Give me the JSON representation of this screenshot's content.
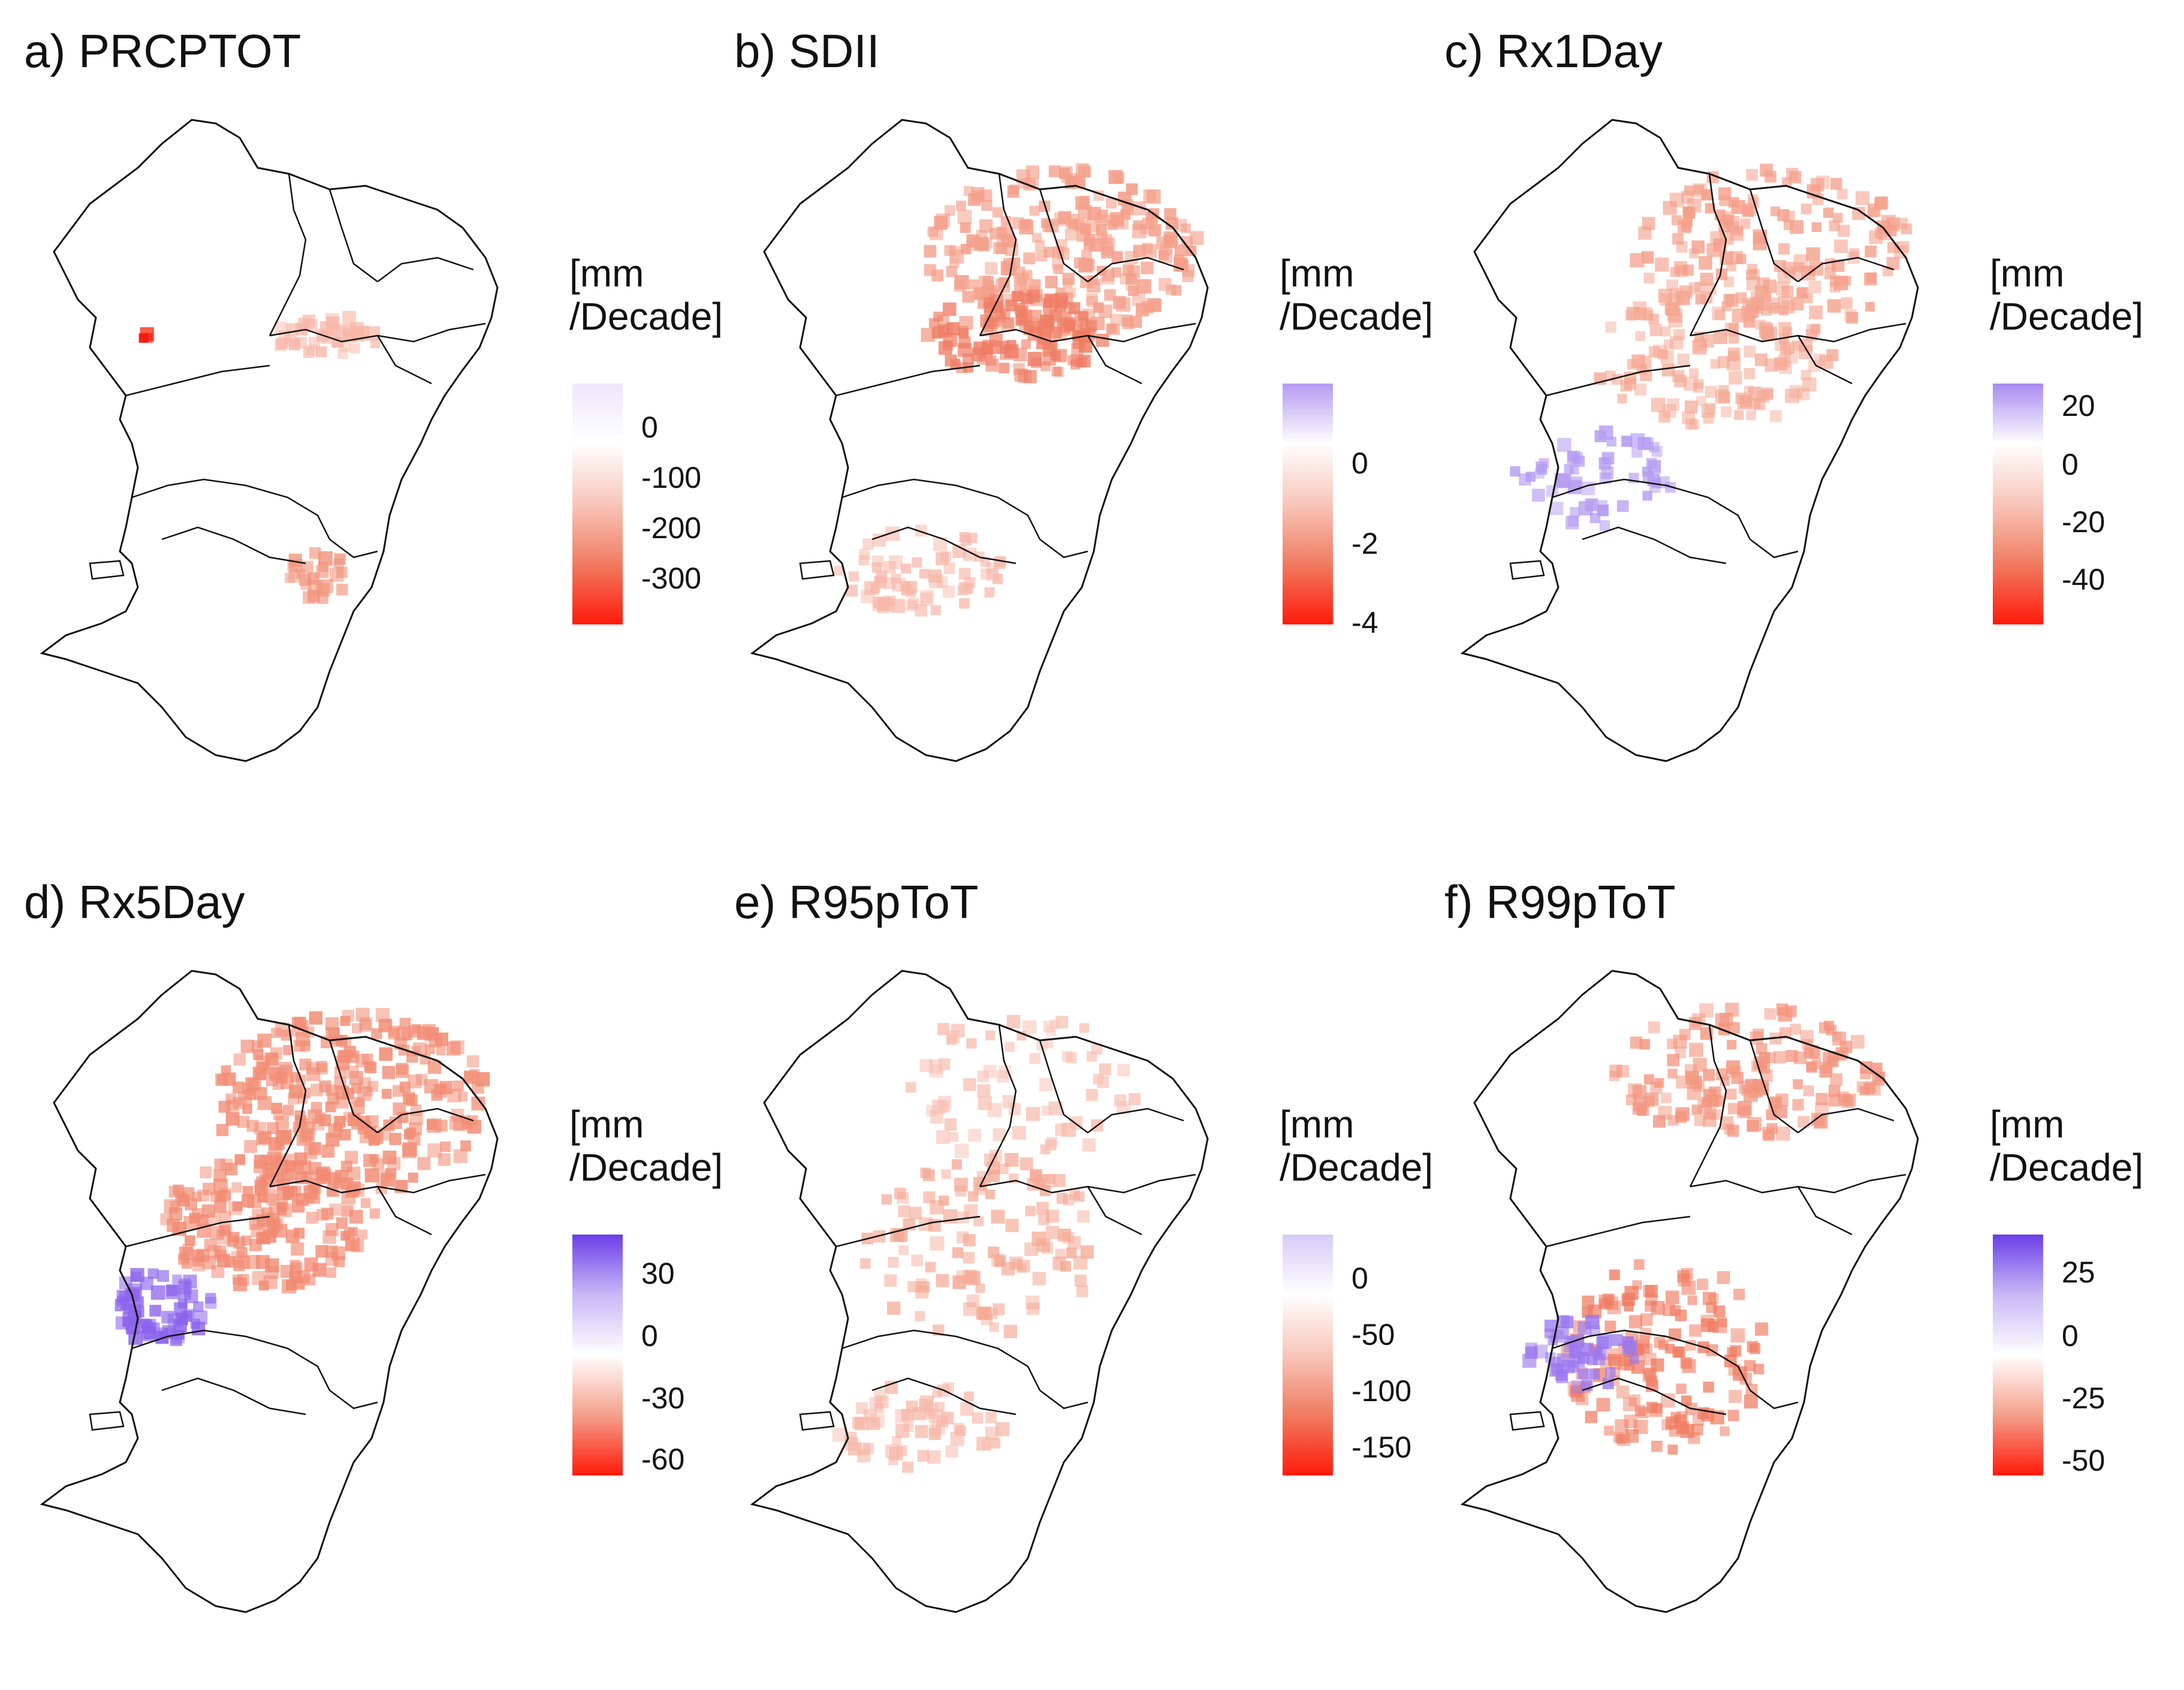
{
  "figure": {
    "palette": {
      "blue_strong": "#6a3ee8",
      "blue_light": "#d8cff8",
      "white": "#ffffff",
      "red_light": "#f8c6ba",
      "red_mid": "#f07b60",
      "red_strong": "#ff1a0a",
      "outline": "#111111"
    },
    "panels": [
      {
        "id": "a",
        "title": "a) PRCPTOT",
        "unit_line1": "[mm",
        "unit_line2": "/Decade]",
        "colorbar_stops": [
          "#ece7fb",
          "#ffffff",
          "#f8c6ba",
          "#f07b60",
          "#ff1a0a"
        ],
        "ticks": [
          "0",
          "-100",
          "-200",
          "-300"
        ],
        "patches": [
          {
            "name": "north-cluster",
            "color": "#f7b7a8",
            "opacity": 0.85
          },
          {
            "name": "hotspot-west",
            "color": "#ff1a0a",
            "opacity": 1.0
          },
          {
            "name": "south-cluster",
            "color": "#f2957d",
            "opacity": 0.85
          }
        ]
      },
      {
        "id": "b",
        "title": "b) SDII",
        "unit_line1": "[mm",
        "unit_line2": "/Decade]",
        "colorbar_stops": [
          "#b69af2",
          "#ffffff",
          "#f8c6ba",
          "#f07b60",
          "#ff1a0a"
        ],
        "ticks": [
          "0",
          "-2",
          "-4"
        ],
        "patches": [
          {
            "name": "northeast-band",
            "color": "#f4a08b",
            "opacity": 0.9
          },
          {
            "name": "central-core",
            "color": "#ef7d64",
            "opacity": 0.85
          },
          {
            "name": "south-scatter",
            "color": "#f7b7a8",
            "opacity": 0.8
          }
        ]
      },
      {
        "id": "c",
        "title": "c) Rx1Day",
        "unit_line1": "[mm",
        "unit_line2": "/Decade]",
        "colorbar_stops": [
          "#a98af0",
          "#ffffff",
          "#f8c6ba",
          "#f07b60",
          "#ff1a0a"
        ],
        "ticks": [
          "20",
          "0",
          "-20",
          "-40"
        ],
        "patches": [
          {
            "name": "northeast-band",
            "color": "#f4a08b",
            "opacity": 0.85
          },
          {
            "name": "central-core",
            "color": "#f4a893",
            "opacity": 0.8
          },
          {
            "name": "southwest-increase",
            "color": "#b49bf1",
            "opacity": 0.85
          }
        ]
      },
      {
        "id": "d",
        "title": "d) Rx5Day",
        "unit_line1": "[mm",
        "unit_line2": "/Decade]",
        "colorbar_stops": [
          "#6a3ee8",
          "#c9b8f6",
          "#ffffff",
          "#f4a08b",
          "#ff1a0a"
        ],
        "ticks": [
          "30",
          "0",
          "-30",
          "-60"
        ],
        "patches": [
          {
            "name": "northeast-band",
            "color": "#f28e76",
            "opacity": 0.9
          },
          {
            "name": "central-core",
            "color": "#f28a72",
            "opacity": 0.85
          },
          {
            "name": "southwest-increase",
            "color": "#8c64ec",
            "opacity": 0.85
          }
        ]
      },
      {
        "id": "e",
        "title": "e) R95pToT",
        "unit_line1": "[mm",
        "unit_line2": "/Decade]",
        "colorbar_stops": [
          "#d7cbf7",
          "#ffffff",
          "#f8c6ba",
          "#f07b60",
          "#ff1a0a"
        ],
        "ticks": [
          "0",
          "-50",
          "-100",
          "-150"
        ],
        "patches": [
          {
            "name": "north-scatter",
            "color": "#f8c1b3",
            "opacity": 0.85
          },
          {
            "name": "central-core",
            "color": "#f4a893",
            "opacity": 0.8
          },
          {
            "name": "south-scatter",
            "color": "#f7b7a8",
            "opacity": 0.8
          }
        ]
      },
      {
        "id": "f",
        "title": "f) R99pToT",
        "unit_line1": "[mm",
        "unit_line2": "/Decade]",
        "colorbar_stops": [
          "#6a3ee8",
          "#c9b8f6",
          "#ffffff",
          "#f4a08b",
          "#ff1a0a"
        ],
        "ticks": [
          "25",
          "0",
          "-25",
          "-50"
        ],
        "patches": [
          {
            "name": "north-band",
            "color": "#f39680",
            "opacity": 0.85
          },
          {
            "name": "central-south",
            "color": "#f07b60",
            "opacity": 0.8
          },
          {
            "name": "southwest-increase",
            "color": "#9b78ee",
            "opacity": 0.85
          }
        ]
      }
    ]
  }
}
